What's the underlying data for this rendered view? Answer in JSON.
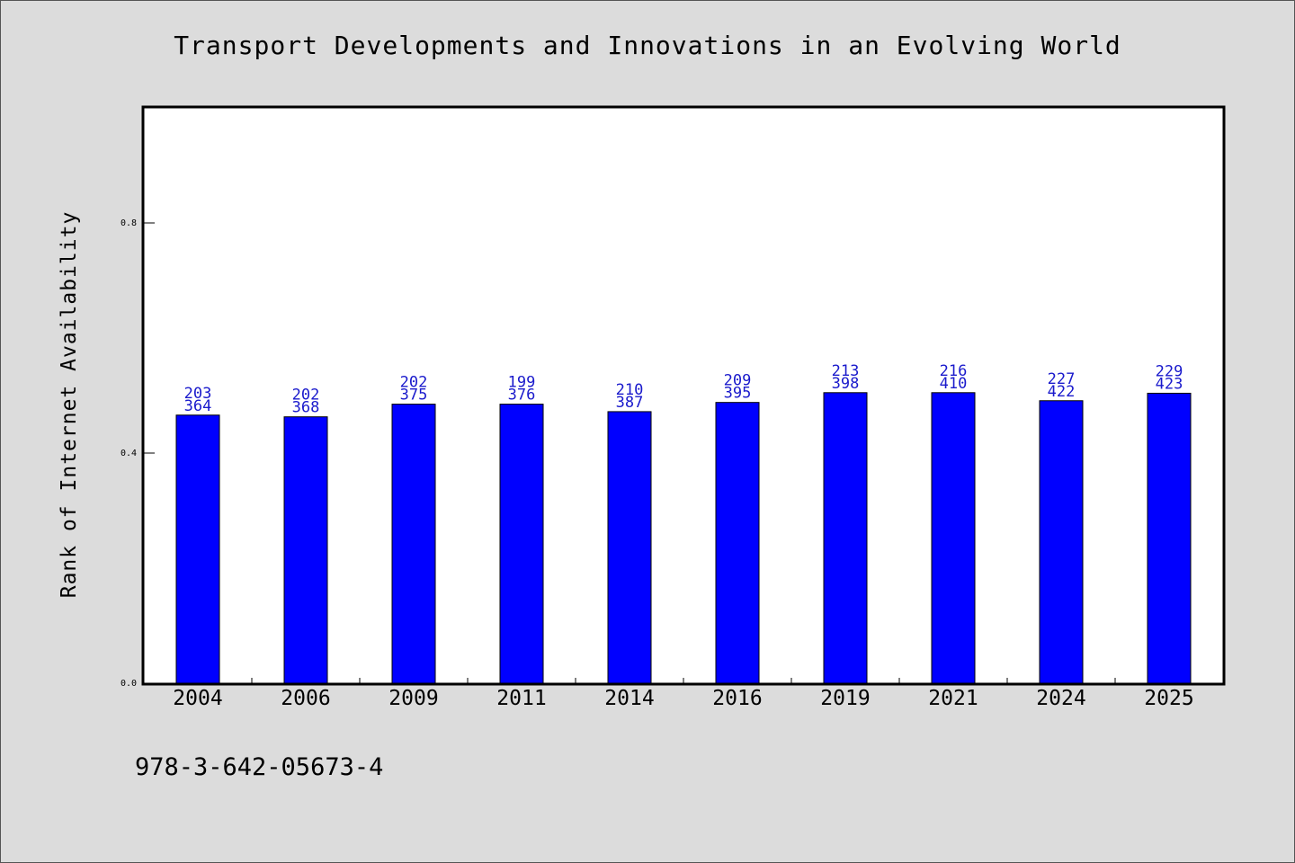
{
  "chart_data": {
    "type": "bar",
    "title": "Transport Developments and Innovations in an Evolving World",
    "xlabel": "",
    "ylabel": "Rank of Internet Availability",
    "ylim": [
      0,
      1.0
    ],
    "yticks": [
      "0.0",
      "0.4",
      "0.8"
    ],
    "categories": [
      "2004",
      "2006",
      "2009",
      "2011",
      "2014",
      "2016",
      "2019",
      "2021",
      "2024",
      "2025"
    ],
    "values": [
      0.466,
      0.463,
      0.485,
      0.485,
      0.472,
      0.488,
      0.505,
      0.505,
      0.491,
      0.504
    ],
    "label_top": [
      "203",
      "202",
      "202",
      "199",
      "210",
      "209",
      "213",
      "216",
      "227",
      "229"
    ],
    "label_bottom": [
      "364",
      "368",
      "375",
      "376",
      "387",
      "395",
      "398",
      "410",
      "422",
      "423"
    ],
    "bar_color": "#0000ff",
    "label_color": "#1a1acc",
    "grid": false,
    "legend": "none"
  },
  "footer": {
    "isbn": "978-3-642-05673-4"
  }
}
